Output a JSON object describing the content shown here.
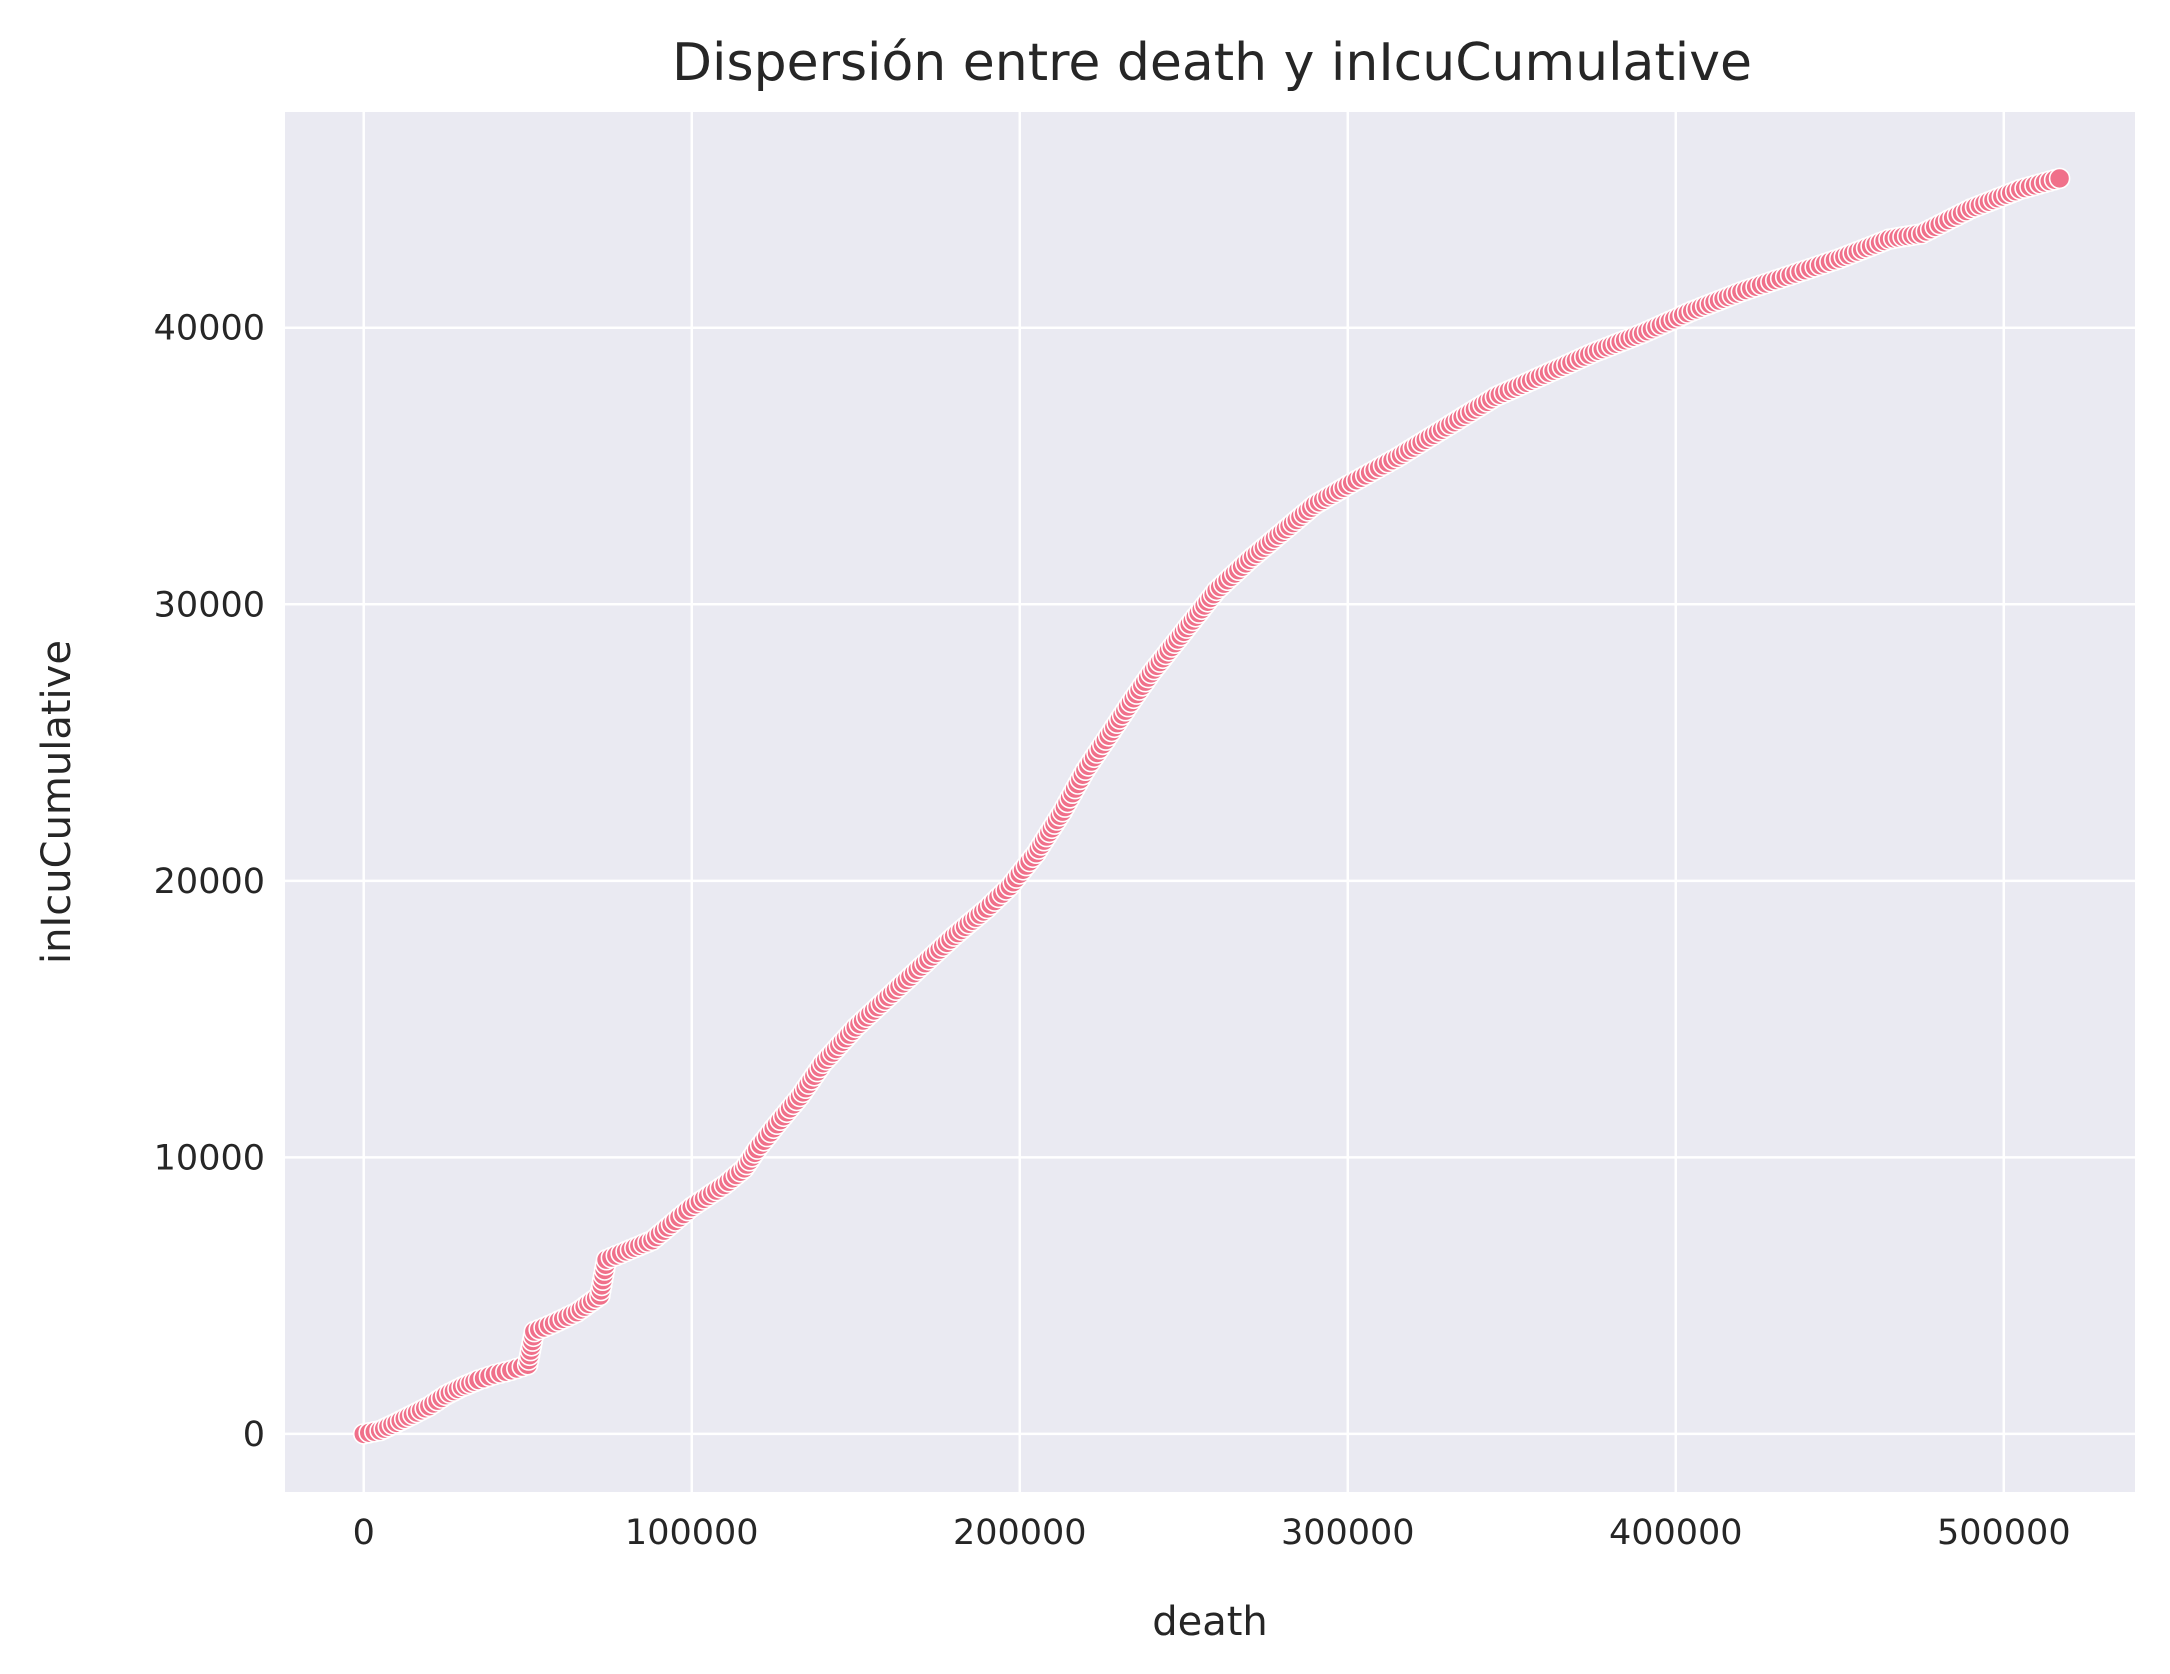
{
  "chart_data": {
    "type": "scatter",
    "title": "Dispersión entre death y inIcuCumulative",
    "xlabel": "death",
    "ylabel": "inIcuCumulative",
    "xlim": [
      -24000,
      540000
    ],
    "ylim": [
      -2100,
      47800
    ],
    "xticks": [
      0,
      100000,
      200000,
      300000,
      400000,
      500000
    ],
    "yticks": [
      0,
      10000,
      20000,
      30000,
      40000
    ],
    "xtick_labels": [
      "0",
      "100000",
      "200000",
      "300000",
      "400000",
      "500000"
    ],
    "ytick_labels": [
      "0",
      "10000",
      "20000",
      "30000",
      "40000"
    ],
    "grid": true,
    "background": "#eaeaf2",
    "grid_color": "#ffffff",
    "marker_color": "#f0708a",
    "marker_edge": "#ffffff",
    "curve": [
      [
        0,
        0
      ],
      [
        5000,
        120
      ],
      [
        10000,
        400
      ],
      [
        15000,
        700
      ],
      [
        20000,
        1000
      ],
      [
        25000,
        1400
      ],
      [
        30000,
        1700
      ],
      [
        35000,
        1950
      ],
      [
        40000,
        2150
      ],
      [
        45000,
        2300
      ],
      [
        50000,
        2500
      ],
      [
        52000,
        3700
      ],
      [
        58000,
        4000
      ],
      [
        65000,
        4400
      ],
      [
        72000,
        5000
      ],
      [
        74000,
        6300
      ],
      [
        80000,
        6600
      ],
      [
        88000,
        7000
      ],
      [
        95000,
        7700
      ],
      [
        100000,
        8200
      ],
      [
        110000,
        9000
      ],
      [
        116000,
        9600
      ],
      [
        120000,
        10300
      ],
      [
        126000,
        11200
      ],
      [
        133000,
        12200
      ],
      [
        140000,
        13400
      ],
      [
        150000,
        14700
      ],
      [
        160000,
        15800
      ],
      [
        170000,
        16900
      ],
      [
        180000,
        18000
      ],
      [
        190000,
        19000
      ],
      [
        197000,
        19800
      ],
      [
        205000,
        21000
      ],
      [
        213000,
        22500
      ],
      [
        220000,
        24000
      ],
      [
        228000,
        25400
      ],
      [
        233000,
        26300
      ],
      [
        240000,
        27500
      ],
      [
        250000,
        29000
      ],
      [
        260000,
        30500
      ],
      [
        270000,
        31600
      ],
      [
        280000,
        32600
      ],
      [
        290000,
        33600
      ],
      [
        300000,
        34300
      ],
      [
        315000,
        35300
      ],
      [
        330000,
        36400
      ],
      [
        345000,
        37500
      ],
      [
        360000,
        38300
      ],
      [
        375000,
        39100
      ],
      [
        390000,
        39800
      ],
      [
        405000,
        40600
      ],
      [
        420000,
        41300
      ],
      [
        435000,
        41900
      ],
      [
        450000,
        42500
      ],
      [
        465000,
        43200
      ],
      [
        475000,
        43400
      ],
      [
        490000,
        44300
      ],
      [
        505000,
        45000
      ],
      [
        517000,
        45400
      ]
    ]
  }
}
